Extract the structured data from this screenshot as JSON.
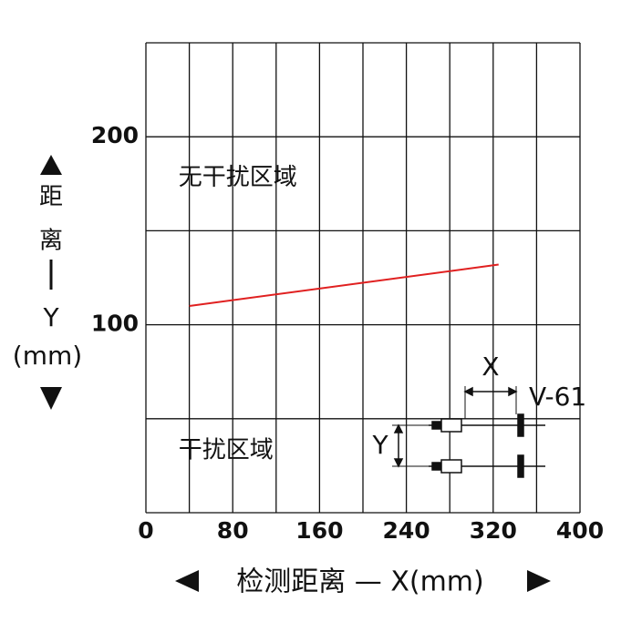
{
  "chart_data": {
    "type": "line",
    "x_label": "检测距离 — X(mm)",
    "y_label": [
      "距",
      "离",
      "Y",
      "(mm)"
    ],
    "xlim": [
      0,
      400
    ],
    "xticks": [
      0,
      80,
      160,
      240,
      320,
      400
    ],
    "xgrid": [
      0,
      40,
      80,
      120,
      160,
      200,
      240,
      280,
      320,
      360,
      400
    ],
    "ylim": [
      0,
      250
    ],
    "yticks": [
      100,
      200
    ],
    "ygrid": [
      0,
      50,
      100,
      150,
      200,
      250
    ],
    "series": [
      {
        "color": "#e02020",
        "x": [
          40,
          325
        ],
        "values": [
          110,
          132
        ]
      }
    ],
    "annotations": [
      {
        "text": "无干扰区域",
        "x": 30,
        "y": 178
      },
      {
        "text": "干扰区域",
        "x": 30,
        "y": 33
      }
    ],
    "diagram_labels": {
      "x": "X",
      "sensor": "V-61",
      "y": "Y"
    }
  }
}
